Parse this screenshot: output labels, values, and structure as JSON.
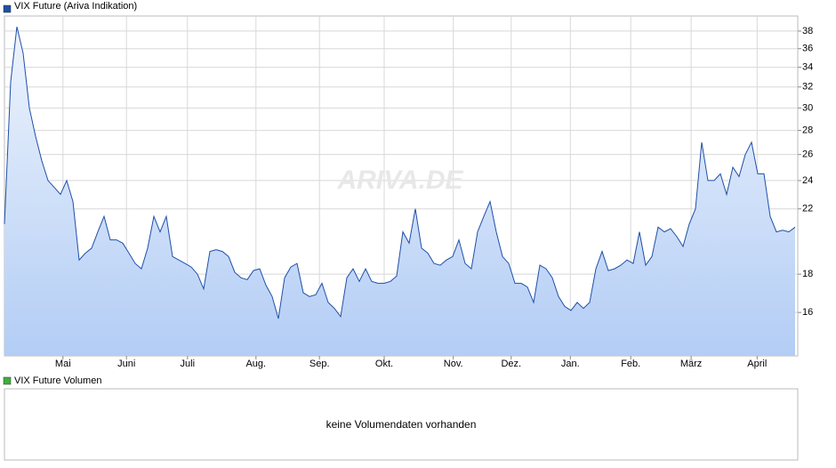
{
  "chart_data": {
    "type": "line",
    "series": [
      {
        "name": "VIX Future (Ariva Indikation)",
        "color": "#1f4fa8",
        "values": [
          21,
          32.5,
          38.5,
          35.5,
          30,
          27.5,
          25.5,
          24,
          23.5,
          23,
          24,
          22.5,
          18.8,
          19.2,
          19.5,
          20.5,
          21.5,
          20,
          20,
          19.8,
          19.2,
          18.6,
          18.3,
          19.5,
          21.5,
          20.5,
          21.5,
          19,
          18.8,
          18.6,
          18.4,
          18,
          17.2,
          19.3,
          19.4,
          19.3,
          19,
          18.1,
          17.8,
          17.7,
          18.2,
          18.3,
          17.4,
          16.8,
          15.7,
          17.8,
          18.4,
          18.6,
          17,
          16.8,
          16.9,
          17.5,
          16.5,
          16.2,
          15.8,
          17.8,
          18.3,
          17.6,
          18.3,
          17.6,
          17.5,
          17.5,
          17.6,
          17.9,
          20.5,
          19.8,
          22,
          19.5,
          19.2,
          18.6,
          18.5,
          18.8,
          19,
          20,
          18.6,
          18.3,
          20.5,
          21.5,
          22.5,
          20.5,
          19,
          18.6,
          17.5,
          17.5,
          17.3,
          16.5,
          18.5,
          18.3,
          17.8,
          16.8,
          16.3,
          16.1,
          16.5,
          16.2,
          16.5,
          18.3,
          19.3,
          18.2,
          18.3,
          18.5,
          18.8,
          18.6,
          20.5,
          18.5,
          19,
          20.8,
          20.5,
          20.7,
          20.2,
          19.6,
          21,
          22,
          27,
          24,
          24,
          24.5,
          23,
          25,
          24.3,
          26,
          27,
          24.5,
          24.5,
          21.5,
          20.5,
          20.6,
          20.5,
          20.8
        ]
      }
    ],
    "xlim": [
      0,
      127
    ],
    "xticks": [
      {
        "value": 9.4,
        "label": "Mai"
      },
      {
        "value": 19.6,
        "label": "Juni"
      },
      {
        "value": 29.4,
        "label": "Juli"
      },
      {
        "value": 40.4,
        "label": "Aug."
      },
      {
        "value": 50.6,
        "label": "Sep."
      },
      {
        "value": 61,
        "label": "Okt."
      },
      {
        "value": 72.1,
        "label": "Nov."
      },
      {
        "value": 81.4,
        "label": "Dez."
      },
      {
        "value": 90.9,
        "label": "Jan."
      },
      {
        "value": 100.6,
        "label": "Feb."
      },
      {
        "value": 110.3,
        "label": "März"
      },
      {
        "value": 120.9,
        "label": "April"
      }
    ],
    "ylim": [
      14,
      39.8
    ],
    "yticks": [
      16,
      18,
      22,
      24,
      26,
      28,
      30,
      32,
      34,
      36,
      38
    ],
    "log_scale": true,
    "grid": true
  },
  "watermark": "ARIVA.DE",
  "volume_panel": {
    "legend": "VIX Future Volumen",
    "color": "#3fae3f",
    "message": "keine Volumendaten vorhanden"
  }
}
